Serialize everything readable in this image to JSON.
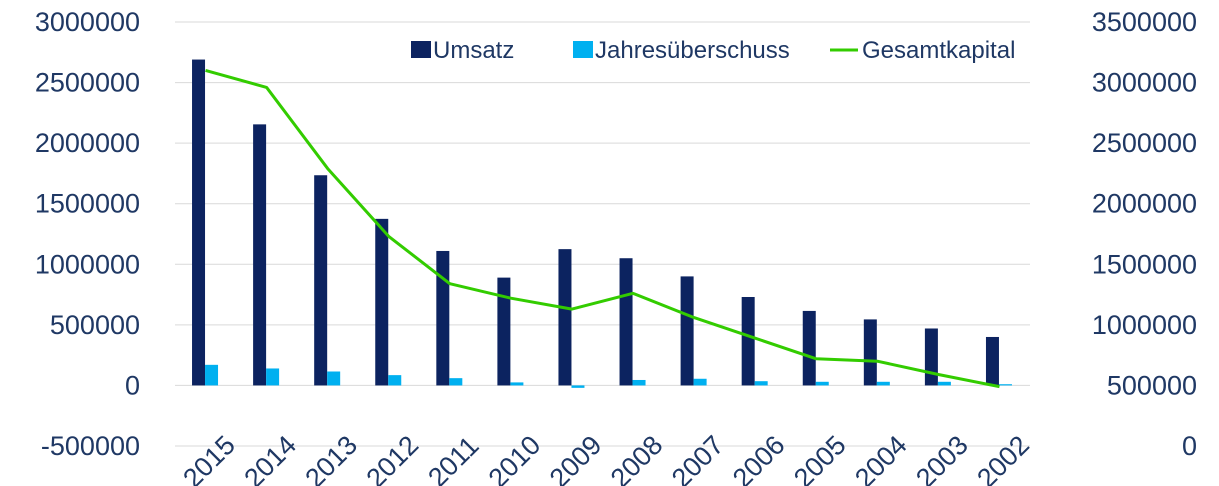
{
  "chart_data": {
    "type": "bar",
    "categories": [
      "2015",
      "2014",
      "2013",
      "2012",
      "2011",
      "2010",
      "2009",
      "2008",
      "2007",
      "2006",
      "2005",
      "2004",
      "2003",
      "2002"
    ],
    "series": [
      {
        "name": "Umsatz",
        "type": "bar",
        "axis": "left",
        "color": "#0c2360",
        "values": [
          2690000,
          2155000,
          1735000,
          1375000,
          1110000,
          890000,
          1125000,
          1050000,
          900000,
          730000,
          615000,
          545000,
          470000,
          400000
        ]
      },
      {
        "name": "Jahresüberschuss",
        "type": "bar",
        "axis": "left",
        "color": "#00b0f0",
        "values": [
          170000,
          140000,
          115000,
          85000,
          60000,
          25000,
          -20000,
          45000,
          55000,
          35000,
          30000,
          30000,
          30000,
          10000
        ]
      },
      {
        "name": "Gesamtkapital",
        "type": "line",
        "axis": "right",
        "color": "#33cc00",
        "values": [
          3100000,
          2960000,
          2290000,
          1730000,
          1340000,
          1220000,
          1130000,
          1260000,
          1060000,
          890000,
          720000,
          700000,
          590000,
          490000
        ]
      }
    ],
    "y_left": {
      "min": -500000,
      "max": 3000000,
      "ticks": [
        "3000000",
        "2500000",
        "2000000",
        "1500000",
        "1000000",
        "500000",
        "0",
        "-500000"
      ]
    },
    "y_right": {
      "min": 0,
      "max": 3500000,
      "ticks": [
        "3500000",
        "3000000",
        "2500000",
        "2000000",
        "1500000",
        "1000000",
        "500000",
        "0"
      ]
    },
    "grid": true,
    "legend_position": "top-right",
    "title": "",
    "xlabel": "",
    "ylabel": ""
  }
}
